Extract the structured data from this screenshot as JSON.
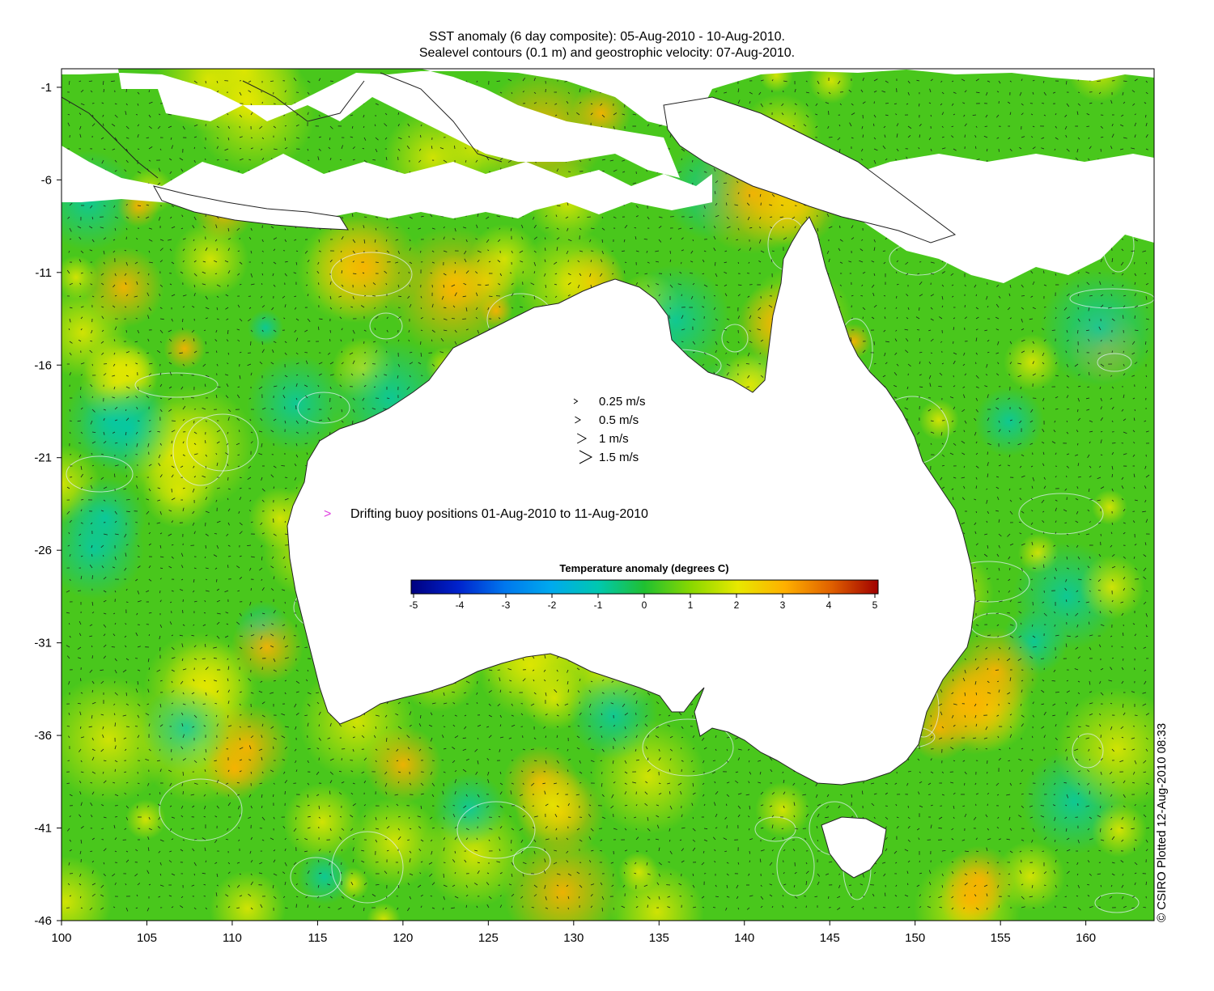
{
  "title": {
    "line1": "SST anomaly (6 day composite): 05-Aug-2010 - 10-Aug-2010.",
    "line2": "Sealevel contours (0.1 m) and geostrophic velocity: 07-Aug-2010."
  },
  "map": {
    "lon_range": [
      100,
      164
    ],
    "lat_range": [
      -46,
      0
    ],
    "x_ticks": [
      "100",
      "105",
      "110",
      "115",
      "120",
      "125",
      "130",
      "135",
      "140",
      "145",
      "150",
      "155",
      "160"
    ],
    "x_tick_values": [
      100,
      105,
      110,
      115,
      120,
      125,
      130,
      135,
      140,
      145,
      150,
      155,
      160
    ],
    "y_ticks": [
      "-1",
      "-6",
      "-11",
      "-16",
      "-21",
      "-26",
      "-31",
      "-36",
      "-41",
      "-46"
    ],
    "y_tick_values": [
      -1,
      -6,
      -11,
      -16,
      -21,
      -26,
      -31,
      -36,
      -41,
      -46
    ],
    "ocean_color": "#49c71c",
    "land_color": "#ffffff"
  },
  "velocity_legend": {
    "items": [
      {
        "label": "0.25 m/s",
        "speed": 0.25
      },
      {
        "label": "0.5 m/s",
        "speed": 0.5
      },
      {
        "label": "1 m/s",
        "speed": 1
      },
      {
        "label": "1.5 m/s",
        "speed": 1.5
      }
    ]
  },
  "buoy_legend": {
    "symbol": ">",
    "label": "Drifting buoy positions 01-Aug-2010 to 11-Aug-2010",
    "color": "#e040e0"
  },
  "colorbar": {
    "title": "Temperature anomaly (degrees C)",
    "ticks": [
      "-5",
      "-4",
      "-3",
      "-2",
      "-1",
      "0",
      "1",
      "2",
      "3",
      "4",
      "5"
    ],
    "range": [
      -5,
      5
    ],
    "colors": [
      "#000080",
      "#0022cc",
      "#0077ee",
      "#00aaee",
      "#00c8b0",
      "#20c030",
      "#8ad800",
      "#e8e800",
      "#ffb000",
      "#e06000",
      "#a00000"
    ]
  },
  "copyright": "© CSIRO Plotted 12-Aug-2010 08:33"
}
